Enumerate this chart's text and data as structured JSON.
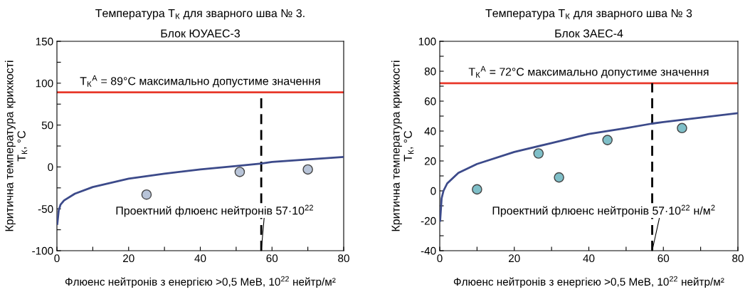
{
  "chart_data": [
    {
      "type": "line",
      "title": "Температура T$_{К}$ для зварного шва № 3.",
      "subtitle": "Блок ЮУАЕС-3",
      "xlabel": "Флюенс нейтронів з енергією >0,5 МеВ, 10$^{22}$ нейтр/м²",
      "ylabel": "Критична температура крихкості\nT$_{К}$, °C",
      "xlim": [
        0,
        80
      ],
      "ylim": [
        -100,
        150
      ],
      "xticks": [
        0,
        {
          "value": 10,
          "label": null
        },
        20,
        {
          "value": 30,
          "label": null
        },
        40,
        {
          "value": 50,
          "label": null
        },
        60,
        {
          "value": 70,
          "label": null
        },
        80
      ],
      "yticks": [
        -100,
        {
          "value": -75,
          "label": null
        },
        -50,
        {
          "value": -25,
          "label": null
        },
        0,
        {
          "value": 25,
          "label": null
        },
        50,
        {
          "value": 75,
          "label": null
        },
        100,
        {
          "value": 125,
          "label": null
        },
        150
      ],
      "series": [
        {
          "color": "#3c4a8a",
          "x": [
            0.1,
            0.5,
            1,
            2,
            5,
            10,
            20,
            30,
            40,
            50,
            57,
            60,
            70,
            80
          ],
          "values": [
            -68,
            -52,
            -45,
            -40,
            -32,
            -24,
            -14,
            -8,
            -3,
            1,
            4,
            6,
            9,
            12
          ]
        },
        {
          "type": "scatter",
          "color": "#b8c4d8",
          "marker": "circle",
          "x": [
            25,
            51,
            70
          ],
          "values": [
            -33,
            -6,
            -3
          ]
        }
      ],
      "ref_lines": [
        {
          "axis": "y",
          "value": 89,
          "label": "T$_{К}$$^{A}$ = 89°C максимально допустиме значення",
          "color": "#e8392b",
          "line_style": "solid"
        },
        {
          "axis": "x",
          "value": 57,
          "color": "#000000",
          "line_style": "dashed"
        }
      ],
      "annotations": [
        {
          "text": "Проектний флюенс нейтронів 57·10$^{22}$",
          "x": 57,
          "y": -100
        }
      ],
      "grid": false,
      "legend": false
    },
    {
      "type": "line",
      "title": "Температура T$_{К}$ для зварного шва № 3",
      "subtitle": "Блок ЗАЕС-4",
      "xlabel": "Флюенс нейтронів з енергією >0,5 МеВ, 10$^{22}$ нейтр/м²",
      "ylabel": "Критична температура крихкості\nT$_{К}$, °C",
      "xlim": [
        0,
        80
      ],
      "ylim": [
        -40,
        100
      ],
      "xticks": [
        0,
        {
          "value": 10,
          "label": null
        },
        20,
        {
          "value": 30,
          "label": null
        },
        40,
        {
          "value": 50,
          "label": null
        },
        60,
        {
          "value": 70,
          "label": null
        },
        80
      ],
      "yticks": [
        -40,
        {
          "value": -30,
          "label": null
        },
        -20,
        {
          "value": -10,
          "label": null
        },
        0,
        {
          "value": 10,
          "label": null
        },
        20,
        {
          "value": 30,
          "label": null
        },
        40,
        {
          "value": 50,
          "label": null
        },
        60,
        {
          "value": 70,
          "label": null
        },
        80,
        {
          "value": 90,
          "label": null
        },
        100
      ],
      "series": [
        {
          "color": "#3c4a8a",
          "x": [
            0.1,
            0.5,
            1,
            2,
            5,
            10,
            20,
            30,
            40,
            50,
            57,
            60,
            70,
            80
          ],
          "values": [
            -20,
            -5,
            0,
            5,
            12,
            18,
            26,
            32,
            38,
            42,
            45,
            46,
            49,
            52
          ]
        },
        {
          "type": "scatter",
          "color": "#7fbfc8",
          "marker": "circle",
          "x": [
            10,
            26.5,
            32,
            45,
            65
          ],
          "values": [
            1,
            25,
            9,
            34,
            42
          ]
        }
      ],
      "ref_lines": [
        {
          "axis": "y",
          "value": 72,
          "label": "T$_{К}$$^{A}$ = 72°C максимально допустиме значення",
          "color": "#e8392b",
          "line_style": "solid"
        },
        {
          "axis": "x",
          "value": 57,
          "color": "#000000",
          "line_style": "dashed"
        }
      ],
      "annotations": [
        {
          "text": "Проектний флюенс нейтронів 57·10$^{22}$ н/м$^{2}$",
          "x": 57,
          "y": -40
        }
      ],
      "grid": false,
      "legend": false
    }
  ]
}
